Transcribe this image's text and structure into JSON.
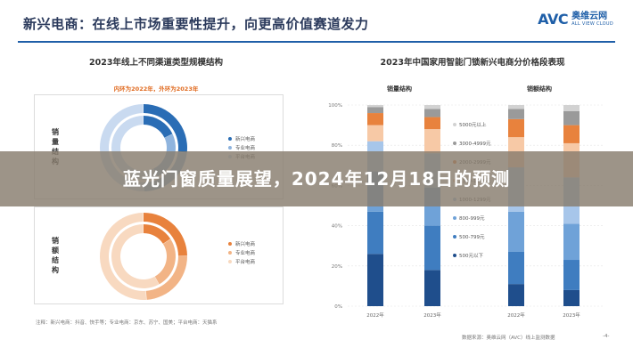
{
  "header": {
    "title": "新兴电商：在线上市场重要性提升，向更高价值赛道发力",
    "logo_mark": "AVC",
    "logo_cn": "奥维云网",
    "logo_en": "ALL VIEW CLOUD"
  },
  "overlay": {
    "headline": "蓝光门窗质量展望，2024年12月18日的预测"
  },
  "left_panel": {
    "title": "2023年线上不同渠道类型规模结构",
    "subnote": "内环为2022年，外环为2023年",
    "volume_label": "销量结构",
    "sales_label": "销额结构",
    "footnote": "注释：新兴电商：抖音、快手等；专业电商：京东、苏宁、国美；平台电商：天猫系"
  },
  "right_panel": {
    "title": "2023年中国家用智能门锁新兴电商分价格段表现",
    "volume_label": "销量结构",
    "sales_label": "销额结构",
    "footnote": "数据来源：奥维云网（AVC）线上监测数据",
    "page": "-4-"
  },
  "chart_data": [
    {
      "type": "pie",
      "variant": "donut",
      "title": "2023年线上不同渠道类型规模结构",
      "panel": "销量结构",
      "legend": [
        "新兴电商",
        "专业电商",
        "平台电商"
      ],
      "colors": [
        "#2a6db5",
        "#8fb4de",
        "#c9daf0"
      ],
      "rings": [
        {
          "year": "2022年",
          "ring": "inner",
          "values": [
            18,
            25,
            57
          ]
        },
        {
          "year": "2023年",
          "ring": "outer",
          "values": [
            27,
            23,
            50
          ]
        }
      ]
    },
    {
      "type": "pie",
      "variant": "donut",
      "title": "2023年线上不同渠道类型规模结构",
      "panel": "销额结构",
      "legend": [
        "新兴电商",
        "专业电商",
        "平台电商"
      ],
      "colors": [
        "#e8823d",
        "#f2b486",
        "#f8d9c0"
      ],
      "rings": [
        {
          "year": "2022年",
          "ring": "inner",
          "values": [
            16,
            26,
            58
          ]
        },
        {
          "year": "2023年",
          "ring": "outer",
          "values": [
            25,
            24,
            51
          ]
        }
      ]
    },
    {
      "type": "bar",
      "stacked": true,
      "title": "2023年中国家用智能门锁新兴电商分价格段表现",
      "categories": [
        "2022年",
        "2023年"
      ],
      "yticks": [
        "0%",
        "20%",
        "40%",
        "60%",
        "80%",
        "100%"
      ],
      "ylim": [
        0,
        100
      ],
      "groups": [
        "销量结构",
        "销额结构"
      ],
      "series": [
        {
          "name": "500元以下",
          "color": "#1f4e8c",
          "volume": [
            26,
            18
          ],
          "sales": [
            11,
            8
          ]
        },
        {
          "name": "500-799元",
          "color": "#3f7dc0",
          "volume": [
            21,
            22
          ],
          "sales": [
            16,
            15
          ]
        },
        {
          "name": "800-999元",
          "color": "#6fa2d8",
          "volume": [
            20,
            19
          ],
          "sales": [
            20,
            18
          ]
        },
        {
          "name": "1000-1299元",
          "color": "#a7c6ea",
          "volume": [
            15,
            17
          ],
          "sales": [
            22,
            23
          ]
        },
        {
          "name": "1300-1999元",
          "color": "#f7c9a6",
          "volume": [
            8,
            12
          ],
          "sales": [
            15,
            17
          ]
        },
        {
          "name": "2000-2999元",
          "color": "#e8823d",
          "volume": [
            6,
            6
          ],
          "sales": [
            9,
            9
          ]
        },
        {
          "name": "3000-4999元",
          "color": "#9a9a9a",
          "volume": [
            3,
            4
          ],
          "sales": [
            5,
            7
          ]
        },
        {
          "name": "5000元以上",
          "color": "#d2d2d2",
          "volume": [
            1,
            2
          ],
          "sales": [
            2,
            3
          ]
        }
      ]
    }
  ]
}
